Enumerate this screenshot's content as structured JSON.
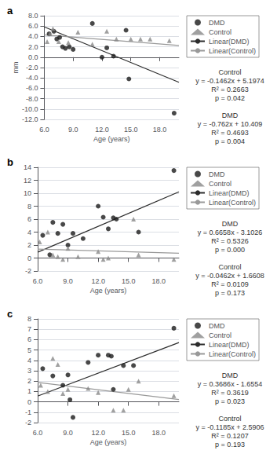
{
  "chart_data": [
    {
      "type": "scatter",
      "title": "a",
      "xlabel": "Age (years)",
      "ylabel": "mm",
      "xlim": [
        6.0,
        20.0
      ],
      "xticks": [
        {
          "value": 6.0,
          "label": "6.0"
        },
        {
          "value": 9.0,
          "label": "9.0"
        },
        {
          "value": 12.0,
          "label": "12.0"
        },
        {
          "value": 15.0,
          "label": "15.0"
        },
        {
          "value": 18.0,
          "label": "18.0"
        }
      ],
      "ylim": [
        -12.0,
        8.0
      ],
      "yticks": [
        {
          "value": -12.0,
          "label": "-12.0"
        },
        {
          "value": -10.0,
          "label": "-10.0"
        },
        {
          "value": -8.0,
          "label": "-8.0"
        },
        {
          "value": -6.0,
          "label": "-6.0"
        },
        {
          "value": -4.0,
          "label": "-4.0"
        },
        {
          "value": -2.0,
          "label": "-2.0"
        },
        {
          "value": 0.0,
          "label": "0.0"
        },
        {
          "value": 2.0,
          "label": "2.0"
        },
        {
          "value": 4.0,
          "label": "4.0"
        },
        {
          "value": 6.0,
          "label": "6.0"
        },
        {
          "value": 8.0,
          "label": "8.0"
        }
      ],
      "grid": "y",
      "legend": "right",
      "series": [
        {
          "name": "DMD",
          "type": "scatter",
          "marker": "circle",
          "color": "#1a1a1a",
          "x": [
            6.5,
            7.0,
            7.3,
            7.6,
            7.9,
            8.2,
            8.6,
            9.0,
            11.0,
            12.0,
            12.5,
            13.2,
            14.5,
            14.8,
            19.5
          ],
          "values": [
            4.5,
            5.0,
            3.5,
            3.8,
            2.0,
            1.7,
            2.0,
            1.5,
            6.5,
            0.0,
            1.8,
            0.2,
            5.2,
            -4.2,
            -10.8
          ]
        },
        {
          "name": "Control",
          "type": "scatter",
          "marker": "triangle",
          "color": "#888888",
          "x": [
            6.3,
            6.6,
            6.9,
            7.5,
            8.5,
            9.5,
            11.0,
            12.5,
            13.5,
            15.0,
            16.0,
            17.0,
            19.0
          ],
          "values": [
            3.0,
            4.5,
            5.5,
            3.0,
            2.8,
            4.8,
            2.5,
            5.0,
            3.5,
            3.5,
            3.5,
            3.5,
            3.2
          ]
        },
        {
          "name": "Linear(DMD)",
          "type": "line",
          "line_style": "solid",
          "color": "#2c2c2c",
          "x": [
            6.0,
            20.0
          ],
          "values": [
            5.837,
            -4.831
          ]
        },
        {
          "name": "Linear(Control)",
          "type": "line",
          "line_style": "solid",
          "color": "#999999",
          "x": [
            6.0,
            20.0
          ],
          "values": [
            4.3202,
            2.2734
          ]
        }
      ],
      "annotations": [
        "Control\ny = -0.1462x + 5.1974\nR² = 0.2663\np = 0.042",
        "DMD\ny = -0.762x + 10.409\nR² = 0.4693\np = 0.004"
      ]
    },
    {
      "type": "scatter",
      "title": "b",
      "xlabel": "Age (years)",
      "xlim": [
        6.0,
        20.0
      ],
      "xticks": [
        {
          "value": 6.0,
          "label": "6.0"
        },
        {
          "value": 9.0,
          "label": "9.0"
        },
        {
          "value": 12.0,
          "label": "12.0"
        },
        {
          "value": 15.0,
          "label": "15.0"
        },
        {
          "value": 18.0,
          "label": "18.0"
        }
      ],
      "ylim": [
        -2.0,
        14.0
      ],
      "yticks": [
        -2,
        0,
        2,
        4,
        6,
        8,
        10,
        12,
        14
      ],
      "grid": "y",
      "legend": "right",
      "series": [
        {
          "name": "DMD",
          "type": "scatter",
          "marker": "circle",
          "color": "#1a1a1a",
          "x": [
            6.5,
            7.2,
            7.5,
            8.0,
            8.5,
            9.0,
            9.5,
            10.5,
            12.0,
            12.5,
            13.0,
            13.5,
            13.8,
            16.0,
            19.5
          ],
          "values": [
            3.5,
            0.5,
            5.5,
            3.8,
            5.2,
            2.0,
            3.8,
            3.0,
            8.0,
            6.3,
            4.5,
            6.2,
            6.0,
            4.0,
            13.5
          ]
        },
        {
          "name": "Control",
          "type": "scatter",
          "marker": "triangle",
          "color": "#888888",
          "x": [
            6.2,
            7.0,
            7.5,
            8.0,
            8.5,
            9.0,
            10.0,
            12.0,
            12.5,
            13.0,
            15.5,
            16.0,
            19.5
          ],
          "values": [
            2.5,
            4.0,
            0.5,
            0.2,
            -0.2,
            1.5,
            0.2,
            1.0,
            -0.2,
            0.0,
            6.0,
            0.5,
            -0.2
          ]
        },
        {
          "name": "Linear(DMD)",
          "type": "line",
          "line_style": "solid",
          "color": "#2c2c2c",
          "x": [
            6.0,
            20.0
          ],
          "values": [
            0.8922,
            10.2134
          ]
        },
        {
          "name": "Linear(Control)",
          "type": "line",
          "line_style": "solid",
          "color": "#999999",
          "x": [
            6.0,
            20.0
          ],
          "values": [
            1.3836,
            0.7368
          ]
        }
      ],
      "annotations": [
        "DMD\ny = 0.6658x - 3.1026\nR² = 0.5326\np = 0.000",
        "Control\ny = -0.0462x + 1.6608\nR² = 0.0109\np = 0.173"
      ]
    },
    {
      "type": "scatter",
      "title": "c",
      "xlabel": "Age (years)",
      "xlim": [
        6.0,
        20.0
      ],
      "xticks": [
        {
          "value": 6.0,
          "label": "6.0"
        },
        {
          "value": 9.0,
          "label": "9.0"
        },
        {
          "value": 12.0,
          "label": "12.0"
        },
        {
          "value": 15.0,
          "label": "15.0"
        },
        {
          "value": 18.0,
          "label": "18.0"
        }
      ],
      "ylim": [
        -2.0,
        8.0
      ],
      "yticks": [
        -2,
        -1,
        0,
        1,
        2,
        3,
        4,
        5,
        6,
        7,
        8
      ],
      "grid": "y",
      "legend": "right",
      "series": [
        {
          "name": "DMD",
          "type": "scatter",
          "marker": "circle",
          "color": "#1a1a1a",
          "x": [
            6.5,
            7.5,
            8.5,
            9.0,
            9.2,
            9.5,
            11.0,
            12.0,
            13.0,
            13.3,
            13.5,
            14.5,
            15.5,
            19.5
          ],
          "values": [
            3.2,
            2.5,
            1.6,
            2.6,
            0.2,
            -1.5,
            3.8,
            4.5,
            4.5,
            4.4,
            1.2,
            3.5,
            3.5,
            7.1
          ]
        },
        {
          "name": "Control",
          "type": "scatter",
          "marker": "triangle",
          "color": "#888888",
          "x": [
            6.3,
            7.0,
            7.5,
            8.0,
            8.5,
            9.0,
            11.0,
            12.0,
            13.5,
            14.5,
            15.0,
            16.0,
            19.5
          ],
          "values": [
            1.6,
            1.0,
            4.2,
            3.6,
            0.8,
            1.2,
            1.3,
            0.9,
            -0.8,
            -0.8,
            1.2,
            2.0,
            0.6
          ]
        },
        {
          "name": "Linear(DMD)",
          "type": "line",
          "line_style": "solid",
          "color": "#2c2c2c",
          "x": [
            6.0,
            20.0
          ],
          "values": [
            0.5562,
            5.7166
          ]
        },
        {
          "name": "Linear(Control)",
          "type": "line",
          "line_style": "solid",
          "color": "#999999",
          "x": [
            6.0,
            20.0
          ],
          "values": [
            1.8796,
            0.2206
          ]
        }
      ],
      "annotations": [
        "DMD\ny = 0.3686x - 1.6554\nR² = 0.3619\np = 0.023",
        "Control\ny = -0.1185x + 2.5906\nR² = 0.1207\np = 0.193"
      ]
    }
  ]
}
